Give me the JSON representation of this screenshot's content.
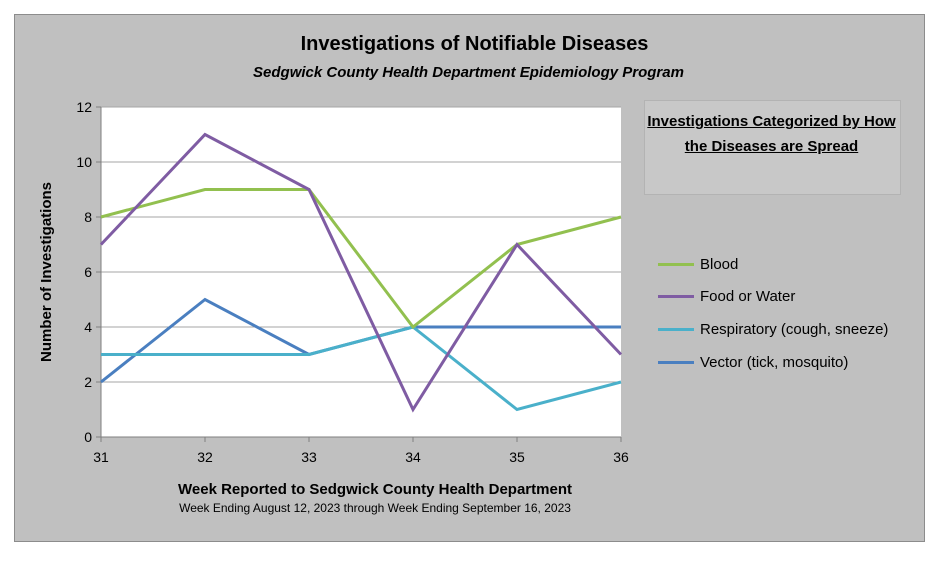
{
  "chart_data": {
    "type": "line",
    "title": "Investigations of Notifiable Diseases",
    "subtitle": "Sedgwick County Health Department Epidemiology Program",
    "xlabel": "Week Reported to Sedgwick County Health Department",
    "xlabel_note": "Week Ending  August 12, 2023 through Week Ending  September 16, 2023",
    "ylabel": "Number of Investigations",
    "x": [
      31,
      32,
      33,
      34,
      35,
      36
    ],
    "x_tick_labels": [
      "31",
      "32",
      "33",
      "34",
      "35",
      "36"
    ],
    "ylim": [
      0,
      12
    ],
    "y_ticks": [
      0,
      2,
      4,
      6,
      8,
      10,
      12
    ],
    "grid": true,
    "legend_title": "Investigations Categorized by How the Diseases are Spread",
    "legend_position": "right",
    "series": [
      {
        "name": "Blood",
        "color": "#92c04f",
        "values": [
          8,
          9,
          9,
          4,
          7,
          8
        ]
      },
      {
        "name": "Food or Water",
        "color": "#7f5ca3",
        "values": [
          7,
          11,
          9,
          1,
          7,
          3
        ]
      },
      {
        "name": "Respiratory (cough, sneeze)",
        "color": "#4ab0ca",
        "values": [
          3,
          3,
          3,
          4,
          1,
          2
        ]
      },
      {
        "name": "Vector (tick, mosquito)",
        "color": "#4a7fc0",
        "values": [
          2,
          5,
          3,
          4,
          4,
          4
        ]
      }
    ]
  }
}
